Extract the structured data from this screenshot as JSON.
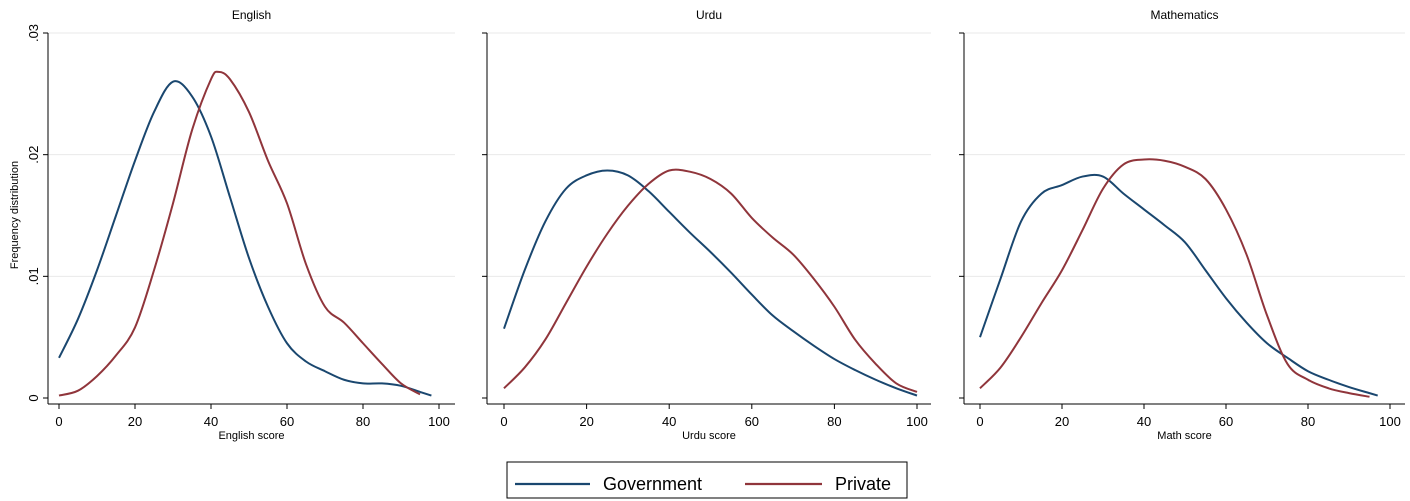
{
  "chart_data": {
    "type": "line",
    "ylabel": "Frequency distribution",
    "ylim": [
      0,
      0.03
    ],
    "yticks": [
      0,
      0.01,
      0.02,
      0.03
    ],
    "ytick_labels": [
      "0",
      ".01",
      ".02",
      ".03"
    ],
    "xlim": [
      0,
      100
    ],
    "xticks": [
      0,
      20,
      40,
      60,
      80,
      100
    ],
    "ygrid": true,
    "legend": {
      "placement": "bottom-center",
      "entries": [
        {
          "label": "Government",
          "color": "#1a476f"
        },
        {
          "label": "Private",
          "color": "#90353b"
        }
      ]
    },
    "panels": [
      {
        "title": "English",
        "xlabel": "English score",
        "series": [
          {
            "name": "Government",
            "color": "#1a476f",
            "x": [
              0,
              5,
              10,
              15,
              20,
              25,
              30,
              35,
              40,
              45,
              50,
              55,
              60,
              65,
              70,
              75,
              80,
              85,
              90,
              95,
              98
            ],
            "y": [
              0.0033,
              0.0065,
              0.0105,
              0.015,
              0.0195,
              0.0235,
              0.026,
              0.0248,
              0.0215,
              0.0165,
              0.0115,
              0.0075,
              0.0045,
              0.003,
              0.0022,
              0.0015,
              0.0012,
              0.0012,
              0.001,
              0.0005,
              0.0002
            ]
          },
          {
            "name": "Private",
            "color": "#90353b",
            "x": [
              0,
              5,
              10,
              15,
              20,
              25,
              30,
              35,
              40,
              42,
              45,
              50,
              55,
              60,
              65,
              70,
              75,
              80,
              85,
              90,
              95
            ],
            "y": [
              0.0002,
              0.0006,
              0.0018,
              0.0035,
              0.0058,
              0.0105,
              0.016,
              0.022,
              0.0262,
              0.0268,
              0.0262,
              0.0235,
              0.0195,
              0.016,
              0.011,
              0.0075,
              0.0062,
              0.0045,
              0.0028,
              0.0012,
              0.0003
            ]
          }
        ]
      },
      {
        "title": "Urdu",
        "xlabel": "Urdu score",
        "series": [
          {
            "name": "Government",
            "color": "#1a476f",
            "x": [
              0,
              5,
              10,
              15,
              20,
              25,
              30,
              35,
              40,
              45,
              50,
              55,
              60,
              65,
              70,
              75,
              80,
              85,
              90,
              95,
              100
            ],
            "y": [
              0.0057,
              0.0105,
              0.0145,
              0.0172,
              0.0183,
              0.0187,
              0.0183,
              0.017,
              0.0153,
              0.0136,
              0.012,
              0.0103,
              0.0085,
              0.0068,
              0.0055,
              0.0043,
              0.0032,
              0.0023,
              0.0015,
              0.0008,
              0.0002
            ]
          },
          {
            "name": "Private",
            "color": "#90353b",
            "x": [
              0,
              5,
              10,
              15,
              20,
              25,
              30,
              35,
              40,
              45,
              50,
              55,
              60,
              65,
              70,
              75,
              80,
              85,
              90,
              95,
              100
            ],
            "y": [
              0.0008,
              0.0025,
              0.0048,
              0.0078,
              0.0108,
              0.0135,
              0.0158,
              0.0176,
              0.0187,
              0.0186,
              0.018,
              0.0168,
              0.0148,
              0.0132,
              0.0118,
              0.0098,
              0.0075,
              0.0048,
              0.0028,
              0.0012,
              0.0005
            ]
          }
        ]
      },
      {
        "title": "Mathematics",
        "xlabel": "Math score",
        "series": [
          {
            "name": "Government",
            "color": "#1a476f",
            "x": [
              0,
              5,
              10,
              15,
              20,
              25,
              30,
              35,
              40,
              45,
              50,
              55,
              60,
              65,
              70,
              75,
              80,
              85,
              90,
              95,
              97
            ],
            "y": [
              0.005,
              0.0098,
              0.0145,
              0.0168,
              0.0175,
              0.0182,
              0.0182,
              0.0168,
              0.0155,
              0.0142,
              0.0128,
              0.0105,
              0.0082,
              0.0062,
              0.0045,
              0.0033,
              0.0022,
              0.0015,
              0.0009,
              0.0004,
              0.0002
            ]
          },
          {
            "name": "Private",
            "color": "#90353b",
            "x": [
              0,
              5,
              10,
              15,
              20,
              25,
              30,
              35,
              40,
              45,
              50,
              55,
              60,
              65,
              70,
              75,
              80,
              85,
              90,
              95
            ],
            "y": [
              0.0008,
              0.0025,
              0.005,
              0.0078,
              0.0105,
              0.0138,
              0.0172,
              0.0192,
              0.0196,
              0.0195,
              0.019,
              0.018,
              0.0155,
              0.0118,
              0.0068,
              0.0028,
              0.0015,
              0.0008,
              0.0004,
              0.0001
            ]
          }
        ]
      }
    ]
  }
}
